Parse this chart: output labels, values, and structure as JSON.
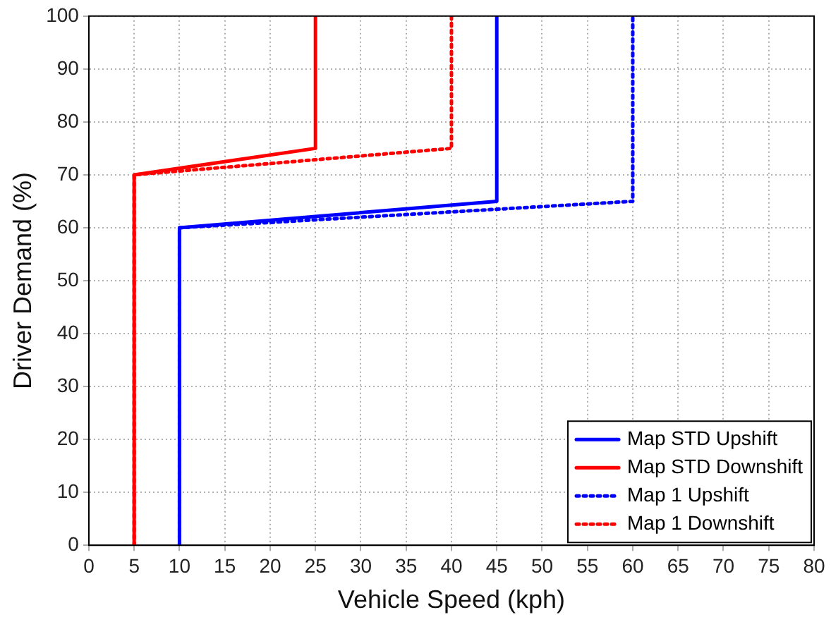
{
  "chart_data": {
    "type": "line",
    "xlabel": "Vehicle Speed (kph)",
    "ylabel": "Driver Demand (%)",
    "xlim": [
      0,
      80
    ],
    "xticks": [
      0,
      5,
      10,
      15,
      20,
      25,
      30,
      35,
      40,
      45,
      50,
      55,
      60,
      65,
      70,
      75,
      80
    ],
    "ylim": [
      0,
      100
    ],
    "yticks": [
      0,
      10,
      20,
      30,
      40,
      50,
      60,
      70,
      80,
      90,
      100
    ],
    "grid": true,
    "legend": "bottom right",
    "marker": "none",
    "series": [
      {
        "name": "Map STD Upshift",
        "color": "#0000ff",
        "line_style": "solid",
        "x": [
          10,
          10,
          45,
          45
        ],
        "values": [
          0,
          60,
          65,
          100
        ]
      },
      {
        "name": "Map STD Downshift",
        "color": "#ff0000",
        "line_style": "solid",
        "x": [
          5,
          5,
          25,
          25
        ],
        "values": [
          0,
          70,
          75,
          100
        ]
      },
      {
        "name": "Map 1 Upshift",
        "color": "#0000ff",
        "line_style": "dotted",
        "x": [
          10,
          10,
          60,
          60
        ],
        "values": [
          0,
          60,
          65,
          100
        ]
      },
      {
        "name": "Map 1 Downshift",
        "color": "#ff0000",
        "line_style": "dotted",
        "x": [
          5,
          5,
          40,
          40
        ],
        "values": [
          0,
          70,
          75,
          100
        ]
      }
    ]
  }
}
